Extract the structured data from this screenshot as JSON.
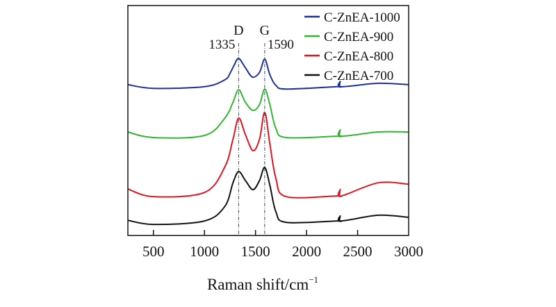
{
  "chart_data": {
    "type": "line",
    "title": "",
    "xlabel": "Raman shift/cm",
    "xlabel_superscript": "−1",
    "ylabel": "",
    "xlim": [
      250,
      3000
    ],
    "ylim": [
      0,
      100
    ],
    "xticks": [
      500,
      1000,
      1500,
      2000,
      2500,
      3000
    ],
    "yticks_shown": false,
    "grid": false,
    "legend_position": "top-right",
    "annotations": [
      {
        "label": "D",
        "value_label": "1335",
        "x": 1335
      },
      {
        "label": "G",
        "value_label": "1590",
        "x": 1590
      }
    ],
    "series": [
      {
        "name": "C-ZnEA-1000",
        "color": "#1f2f9a",
        "x": [
          250,
          500,
          1000,
          1200,
          1250,
          1290,
          1335,
          1400,
          1470,
          1540,
          1590,
          1640,
          1700,
          1800,
          2300,
          2320,
          2330,
          2340,
          2700,
          3000
        ],
        "y": [
          65.6,
          64.0,
          64.7,
          67.7,
          70.5,
          74,
          77.0,
          73,
          68.9,
          71,
          76.7,
          70,
          65.3,
          63.7,
          64.7,
          64.7,
          67,
          64.7,
          66.2,
          65.6
        ]
      },
      {
        "name": "C-ZnEA-900",
        "color": "#2eb82e",
        "x": [
          250,
          500,
          1000,
          1200,
          1280,
          1335,
          1400,
          1475,
          1540,
          1590,
          1640,
          1700,
          1800,
          2300,
          2320,
          2330,
          2340,
          2700,
          3000
        ],
        "y": [
          45.0,
          42.6,
          43.5,
          51.1,
          58,
          63.4,
          58,
          54.4,
          57,
          63.7,
          57,
          46.5,
          42.6,
          43.2,
          43.2,
          46,
          43.2,
          45.0,
          45.0
        ]
      },
      {
        "name": "C-ZnEA-800",
        "color": "#e0141e",
        "x": [
          250,
          500,
          1000,
          1200,
          1280,
          1335,
          1400,
          1475,
          1540,
          1590,
          1640,
          1700,
          1800,
          2300,
          2320,
          2330,
          2340,
          2700,
          3000
        ],
        "y": [
          20.2,
          16.9,
          18.7,
          29.9,
          42,
          51.1,
          44,
          36.9,
          42,
          53.5,
          40,
          24.8,
          16.9,
          17.2,
          17.2,
          20,
          17.2,
          22.9,
          22.3
        ]
      },
      {
        "name": "C-ZnEA-700",
        "color": "#111111",
        "x": [
          250,
          500,
          1000,
          1200,
          1280,
          1335,
          1400,
          1475,
          1540,
          1590,
          1640,
          1700,
          1800,
          2300,
          2320,
          2330,
          2340,
          2700,
          3000
        ],
        "y": [
          6.6,
          4.8,
          6.3,
          12.7,
          23,
          27.8,
          24,
          19.9,
          24,
          29.6,
          22,
          10.3,
          5.7,
          6.3,
          6.3,
          8.5,
          6.3,
          8.8,
          7.9
        ]
      }
    ]
  }
}
